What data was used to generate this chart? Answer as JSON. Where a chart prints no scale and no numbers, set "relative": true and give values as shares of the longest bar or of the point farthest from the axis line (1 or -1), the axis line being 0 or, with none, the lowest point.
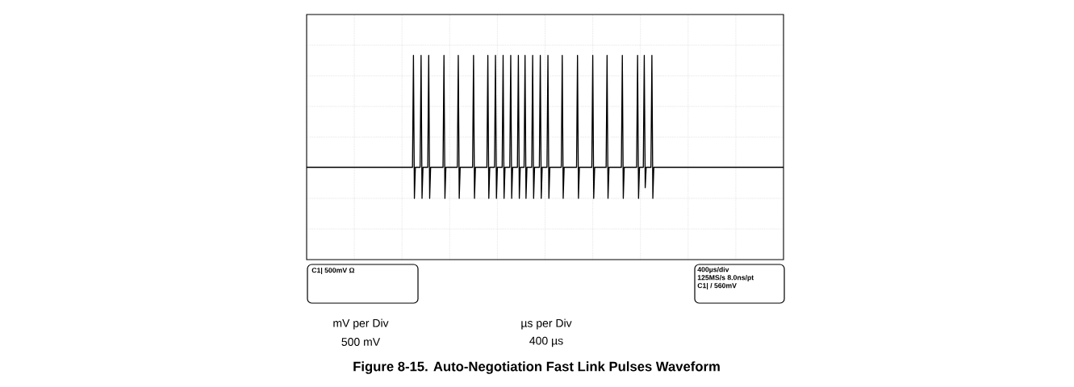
{
  "chart_data": {
    "type": "line",
    "relative": true,
    "title": "Figure 8-15. Auto-Negotiation Fast Link Pulses Waveform",
    "color": "#000000",
    "grid": true,
    "categories": [
      null,
      null,
      null,
      null,
      null,
      null,
      null,
      null,
      null,
      null,
      null,
      null,
      null,
      null,
      null,
      null,
      null,
      null,
      null,
      null,
      null,
      null,
      null,
      null,
      null,
      null,
      null,
      null,
      null,
      null,
      null,
      null,
      null,
      null,
      null,
      null,
      null,
      null,
      null,
      null,
      null,
      null,
      null,
      null,
      null,
      null,
      null,
      null,
      null,
      null,
      null,
      null,
      null,
      null,
      null,
      null,
      null,
      null,
      null,
      null,
      null,
      null,
      null,
      null,
      null,
      null,
      null,
      null,
      null,
      null,
      null,
      null,
      null,
      null,
      null,
      null,
      null,
      null,
      null,
      null,
      null,
      null,
      null,
      null,
      null,
      null,
      null,
      null,
      null,
      null,
      null,
      null,
      null,
      null,
      null,
      null,
      null,
      null,
      null,
      null,
      null,
      null,
      null,
      null,
      null,
      null,
      null,
      null,
      null,
      null,
      null,
      null,
      null,
      null,
      null,
      null,
      null,
      null,
      null,
      null,
      null,
      null,
      null,
      null,
      null,
      null,
      null,
      null,
      null,
      null,
      null,
      null,
      null,
      null,
      null,
      null,
      null,
      null,
      null,
      null,
      null,
      null,
      null,
      null,
      null,
      null,
      null,
      null,
      null,
      null,
      null,
      null,
      null,
      null,
      null,
      null,
      null,
      null,
      null,
      null,
      null,
      null,
      null,
      null,
      null,
      null,
      null,
      null,
      null,
      null,
      null,
      null,
      null,
      null,
      null,
      null,
      null,
      null,
      null,
      null,
      null,
      null,
      null,
      null,
      null,
      null,
      null,
      null,
      null,
      null,
      null,
      null,
      null,
      null,
      null,
      null,
      null,
      null,
      null,
      null,
      null,
      null,
      null,
      null,
      null,
      null,
      null,
      null,
      null,
      null,
      null,
      null,
      null,
      null,
      null,
      null,
      null,
      null,
      null,
      null,
      null,
      null,
      null,
      null,
      null,
      null,
      null,
      null,
      null,
      null,
      null,
      null,
      null,
      null,
      null,
      null,
      null,
      null,
      null,
      null,
      null,
      null,
      null,
      null,
      null,
      null,
      null,
      null,
      null,
      null,
      null,
      null,
      null,
      null,
      null,
      null,
      null,
      null,
      null,
      null,
      null,
      null,
      null,
      null,
      null,
      null,
      null,
      null,
      null,
      null,
      null,
      null,
      null,
      null,
      null,
      null,
      null,
      null,
      null,
      null,
      null,
      null,
      null,
      null,
      null,
      null,
      null,
      null,
      null,
      null,
      null,
      null,
      null,
      null,
      null,
      null,
      null,
      null,
      null,
      null,
      null,
      null,
      null,
      null,
      null,
      null,
      null,
      null,
      null,
      null,
      null,
      null,
      null,
      null,
      null,
      null,
      null,
      null,
      null,
      null,
      null,
      null,
      null,
      null,
      null,
      null,
      null,
      null,
      null,
      null,
      null,
      null,
      null,
      null,
      null,
      null,
      null,
      null,
      null,
      null,
      null,
      null,
      null,
      null,
      null,
      null,
      null,
      null,
      null,
      null,
      null,
      null,
      null,
      null,
      null,
      null,
      null,
      null,
      null,
      null,
      null,
      null,
      null,
      null,
      null,
      null,
      null,
      null,
      null,
      null,
      null,
      null,
      null,
      null,
      null,
      null,
      null,
      null,
      null,
      null,
      null,
      null,
      null,
      null,
      null,
      null,
      null,
      null,
      null,
      null,
      null,
      null,
      null,
      null,
      null,
      null,
      null,
      null,
      null,
      null,
      null,
      null,
      null,
      null,
      null,
      null,
      null,
      null,
      null,
      null,
      null,
      null,
      null,
      null,
      null,
      null,
      null,
      null,
      null,
      null,
      null,
      null,
      null,
      null,
      null,
      null,
      null,
      null,
      null,
      null,
      null,
      null,
      null,
      null,
      null,
      null,
      null,
      null,
      null,
      null,
      null,
      null,
      null,
      null,
      null,
      null,
      null,
      null,
      null,
      null,
      null,
      null,
      null,
      null,
      null,
      null,
      null,
      null,
      null,
      null,
      null,
      null,
      null,
      null,
      null,
      null,
      null,
      null,
      null,
      null,
      null,
      null,
      null,
      null,
      null,
      null,
      null,
      null,
      null,
      null,
      null,
      null,
      null,
      null,
      null,
      null,
      null,
      null,
      null,
      null,
      null,
      null,
      null,
      null,
      null,
      null,
      null,
      null,
      null,
      null,
      null
    ],
    "values": [
      -0.37,
      -0.37,
      -0.37,
      -0.37,
      -0.37,
      -0.37,
      -0.37,
      -0.37,
      -0.37,
      -0.37,
      -0.37,
      -0.37,
      -0.37,
      -0.37,
      -0.37,
      -0.37,
      -0.37,
      -0.37,
      -0.37,
      -0.37,
      -0.37,
      -0.37,
      -0.37,
      -0.37,
      -0.37,
      -0.37,
      -0.37,
      -0.37,
      -0.37,
      -0.37,
      -0.37,
      -0.37,
      -0.37,
      -0.37,
      -0.37,
      -0.37,
      -0.37,
      -0.37,
      -0.37,
      -0.37,
      -0.37,
      -0.37,
      -0.37,
      -0.37,
      -0.37,
      -0.37,
      -0.37,
      -0.37,
      -0.37,
      -0.37,
      -0.37,
      -0.37,
      -0.37,
      -0.37,
      -0.37,
      -0.37,
      -0.37,
      -0.37,
      -0.37,
      -0.37,
      -0.37,
      -0.37,
      -0.37,
      -0.37,
      -0.37,
      -0.37,
      -0.37,
      -0.37,
      -0.37,
      -0.37,
      -0.37,
      -0.37,
      -0.37,
      -0.37,
      -0.37,
      -0.37,
      -0.37,
      -0.37,
      -0.37,
      -0.37,
      -0.37,
      -0.37,
      -0.37,
      -0.37,
      -0.37,
      -0.37,
      -0.37,
      -0.37,
      -0.37,
      -0.37,
      -0.37,
      -0.37,
      -0.37,
      -0.37,
      -0.37,
      -0.37,
      -0.37,
      -0.37,
      -0.37,
      -0.37,
      -0.37,
      -0.37,
      -0.37,
      -0.37,
      -0.37,
      -0.37,
      -0.37,
      -0.37,
      -0.37,
      -0.37,
      -0.37,
      -0.37,
      1,
      -0.75,
      -0.37,
      -0.37,
      -0.37,
      -0.37,
      -0.37,
      -0.37,
      1,
      -0.75,
      -0.37,
      -0.37,
      -0.37,
      -0.37,
      -0.37,
      -0.37,
      1,
      -0.75,
      -0.37,
      -0.37,
      -0.37,
      -0.37,
      -0.37,
      -0.37,
      -0.37,
      -0.37,
      -0.37,
      -0.37,
      -0.37,
      -0.37,
      -0.37,
      -0.37,
      1,
      -0.75,
      -0.37,
      -0.37,
      -0.37,
      -0.37,
      -0.37,
      -0.37,
      -0.37,
      -0.37,
      -0.37,
      -0.37,
      -0.37,
      -0.37,
      -0.37,
      1,
      -0.75,
      -0.37,
      -0.37,
      -0.37,
      -0.37,
      -0.37,
      -0.37,
      -0.37,
      -0.37,
      -0.37,
      -0.37,
      -0.37,
      -0.37,
      -0.37,
      -0.37,
      1,
      -0.75,
      -0.37,
      -0.37,
      -0.37,
      -0.37,
      -0.37,
      -0.37,
      -0.37,
      -0.37,
      -0.37,
      -0.37,
      -0.37,
      -0.37,
      -0.37,
      1,
      -0.75,
      -0.37,
      -0.37,
      -0.37,
      -0.37,
      -0.37,
      -0.37,
      1,
      -0.75,
      -0.37,
      -0.37,
      -0.37,
      -0.37,
      -0.37,
      -0.37,
      1,
      -0.75,
      -0.37,
      -0.37,
      -0.37,
      -0.37,
      -0.37,
      -0.37,
      1,
      -0.75,
      -0.37,
      -0.37,
      -0.37,
      -0.37,
      -0.37,
      -0.37,
      1,
      -0.75,
      -0.37,
      -0.37,
      -0.37,
      -0.37,
      -0.37,
      1,
      -0.75,
      -0.37,
      -0.37,
      -0.37,
      -0.37,
      -0.37,
      -0.37,
      1,
      -0.75,
      -0.37,
      -0.37,
      -0.37,
      -0.37,
      -0.37,
      -0.37,
      1,
      -0.75,
      -0.37,
      -0.37,
      -0.37,
      -0.37,
      -0.37,
      -0.37,
      1,
      -0.75,
      -0.37,
      -0.37,
      -0.37,
      -0.37,
      -0.37,
      -0.37,
      -0.37,
      -0.37,
      -0.37,
      -0.37,
      -0.37,
      -0.37,
      -0.37,
      1,
      -0.75,
      -0.37,
      -0.37,
      -0.37,
      -0.37,
      -0.37,
      -0.37,
      -0.37,
      -0.37,
      -0.37,
      -0.37,
      -0.37,
      -0.37,
      -0.37,
      -0.37,
      1,
      -0.75,
      -0.37,
      -0.37,
      -0.37,
      -0.37,
      -0.37,
      -0.37,
      -0.37,
      -0.37,
      -0.37,
      -0.37,
      -0.37,
      -0.37,
      -0.37,
      -0.37,
      1,
      -0.75,
      -0.37,
      -0.37,
      -0.37,
      -0.37,
      -0.37,
      -0.37,
      -0.37,
      -0.37,
      -0.37,
      -0.37,
      -0.37,
      -0.37,
      -0.37,
      1,
      -0.75,
      -0.37,
      -0.37,
      -0.37,
      -0.37,
      -0.37,
      -0.37,
      -0.37,
      -0.37,
      -0.37,
      -0.37,
      -0.37,
      -0.37,
      -0.37,
      -0.37,
      1,
      -0.75,
      -0.37,
      -0.37,
      -0.37,
      -0.37,
      -0.37,
      -0.37,
      -0.37,
      -0.37,
      -0.37,
      -0.37,
      -0.37,
      -0.37,
      -0.37,
      -0.37,
      1,
      -0.75,
      -0.37,
      -0.37,
      -0.37,
      -0.37,
      -0.37,
      1,
      -0.62,
      -0.37,
      -0.37,
      -0.37,
      -0.37,
      -0.37,
      -0.37,
      1,
      -0.75,
      -0.37,
      -0.37,
      -0.37,
      -0.37,
      -0.37,
      -0.37,
      -0.37,
      -0.37,
      -0.37,
      -0.37,
      -0.37,
      -0.37,
      -0.37,
      -0.37,
      -0.37,
      -0.37,
      -0.37,
      -0.37,
      -0.37,
      -0.37,
      -0.37,
      -0.37,
      -0.37,
      -0.37,
      -0.37,
      -0.37,
      -0.37,
      -0.37,
      -0.37,
      -0.37,
      -0.37,
      -0.37,
      -0.37,
      -0.37,
      -0.37,
      -0.37,
      -0.37,
      -0.37,
      -0.37,
      -0.37,
      -0.37,
      -0.37,
      -0.37,
      -0.37,
      -0.37,
      -0.37,
      -0.37,
      -0.37,
      -0.37,
      -0.37,
      -0.37,
      -0.37,
      -0.37,
      -0.37,
      -0.37,
      -0.37,
      -0.37,
      -0.37,
      -0.37,
      -0.37,
      -0.37,
      -0.37,
      -0.37,
      -0.37,
      -0.37,
      -0.37,
      -0.37,
      -0.37,
      -0.37,
      -0.37,
      -0.37,
      -0.37,
      -0.37,
      -0.37,
      -0.37,
      -0.37,
      -0.37,
      -0.37,
      -0.37,
      -0.37,
      -0.37,
      -0.37,
      -0.37,
      -0.37,
      -0.37,
      -0.37,
      -0.37,
      -0.37,
      -0.37,
      -0.37,
      -0.37,
      -0.37,
      -0.37,
      -0.37,
      -0.37,
      -0.37,
      -0.37,
      -0.37,
      -0.37,
      -0.37,
      -0.37,
      -0.37,
      -0.37,
      -0.37,
      -0.37,
      -0.37,
      -0.37,
      -0.37,
      -0.37,
      -0.37,
      -0.37,
      -0.37,
      -0.37,
      -0.37,
      -0.37,
      -0.37,
      -0.37,
      -0.37,
      -0.37,
      -0.37,
      -0.37,
      -0.37,
      -0.37,
      -0.37,
      -0.37,
      -0.37,
      -0.37,
      -0.37,
      -0.37,
      -0.37,
      -0.37,
      -0.37,
      -0.37,
      -0.37,
      -0.37,
      -0.37,
      -0.37
    ],
    "annotations": [
      "C1| 500mV Ω",
      "400µs/div",
      "125MS/s 8.0ns/pt",
      "C1| / 560mV",
      "mV per Div",
      "500 mV",
      "µs per Div",
      "400 µs"
    ]
  }
}
